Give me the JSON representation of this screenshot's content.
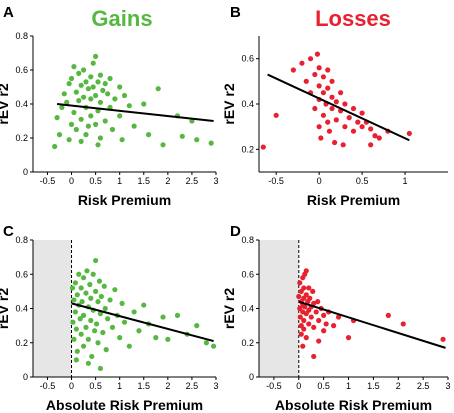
{
  "colors": {
    "gains": "#56b840",
    "losses": "#e82030",
    "shade": "#e6e6e6",
    "fit": "#000000"
  },
  "chart_data": [
    {
      "panel": "A",
      "type": "scatter",
      "title": "Gains",
      "title_color": "#56b840",
      "xlabel": "Risk Premium",
      "ylabel": "rEV r2",
      "xlim": [
        -0.8,
        3.0
      ],
      "ylim": [
        0,
        0.8
      ],
      "xticks": [
        "-0.5",
        "0",
        "0.5",
        "1",
        "1.5",
        "2",
        "2.5",
        "3"
      ],
      "xtick_values": [
        -0.5,
        0,
        0.5,
        1,
        1.5,
        2,
        2.5,
        3
      ],
      "yticks": [
        "0",
        "0.2",
        "0.4",
        "0.6",
        "0.8"
      ],
      "ytick_values": [
        0,
        0.2,
        0.4,
        0.6,
        0.8
      ],
      "shaded_region": null,
      "point_color": "#56b840",
      "points": [
        [
          -0.3,
          0.32
        ],
        [
          -0.25,
          0.22
        ],
        [
          -0.2,
          0.38
        ],
        [
          -0.15,
          0.46
        ],
        [
          -0.1,
          0.41
        ],
        [
          -0.05,
          0.52
        ],
        [
          0,
          0.55
        ],
        [
          0,
          0.28
        ],
        [
          0.05,
          0.62
        ],
        [
          0.05,
          0.35
        ],
        [
          0.1,
          0.47
        ],
        [
          0.1,
          0.25
        ],
        [
          0.15,
          0.58
        ],
        [
          0.15,
          0.42
        ],
        [
          0.2,
          0.51
        ],
        [
          0.2,
          0.31
        ],
        [
          0.2,
          0.18
        ],
        [
          0.25,
          0.6
        ],
        [
          0.25,
          0.44
        ],
        [
          0.3,
          0.53
        ],
        [
          0.3,
          0.38
        ],
        [
          0.3,
          0.22
        ],
        [
          0.35,
          0.49
        ],
        [
          0.35,
          0.27
        ],
        [
          0.4,
          0.56
        ],
        [
          0.4,
          0.43
        ],
        [
          0.4,
          0.33
        ],
        [
          0.45,
          0.64
        ],
        [
          0.45,
          0.5
        ],
        [
          0.5,
          0.68
        ],
        [
          0.5,
          0.45
        ],
        [
          0.5,
          0.28
        ],
        [
          0.55,
          0.53
        ],
        [
          0.55,
          0.36
        ],
        [
          0.6,
          0.57
        ],
        [
          0.6,
          0.41
        ],
        [
          0.6,
          0.2
        ],
        [
          0.65,
          0.48
        ],
        [
          0.7,
          0.52
        ],
        [
          0.7,
          0.3
        ],
        [
          0.75,
          0.46
        ],
        [
          0.8,
          0.38
        ],
        [
          0.8,
          0.55
        ],
        [
          0.85,
          0.25
        ],
        [
          0.9,
          0.43
        ],
        [
          1.0,
          0.5
        ],
        [
          1.0,
          0.33
        ],
        [
          1.05,
          0.19
        ],
        [
          1.1,
          0.45
        ],
        [
          1.2,
          0.39
        ],
        [
          1.3,
          0.27
        ],
        [
          1.5,
          0.4
        ],
        [
          1.6,
          0.22
        ],
        [
          1.8,
          0.49
        ],
        [
          1.9,
          0.16
        ],
        [
          2.2,
          0.33
        ],
        [
          2.3,
          0.21
        ],
        [
          2.5,
          0.3
        ],
        [
          2.6,
          0.19
        ],
        [
          2.9,
          0.17
        ],
        [
          -0.35,
          0.15
        ],
        [
          -0.05,
          0.19
        ],
        [
          0.55,
          0.16
        ]
      ],
      "fit_line": {
        "x": [
          -0.3,
          2.95
        ],
        "y": [
          0.4,
          0.3
        ]
      }
    },
    {
      "panel": "B",
      "type": "scatter",
      "title": "Losses",
      "title_color": "#e82030",
      "xlabel": "Risk Premium",
      "ylabel": "rEV r2",
      "xlim": [
        -0.7,
        1.5
      ],
      "ylim": [
        0.1,
        0.7
      ],
      "xticks": [
        "-0.5",
        "0",
        "0.5",
        "1"
      ],
      "xtick_values": [
        -0.5,
        0,
        0.5,
        1
      ],
      "yticks": [
        "0.2",
        "0.4",
        "0.6"
      ],
      "ytick_values": [
        0.2,
        0.4,
        0.6
      ],
      "shaded_region": null,
      "point_color": "#e82030",
      "points": [
        [
          -0.65,
          0.21
        ],
        [
          -0.3,
          0.55
        ],
        [
          -0.2,
          0.58
        ],
        [
          -0.15,
          0.5
        ],
        [
          -0.1,
          0.45
        ],
        [
          -0.1,
          0.6
        ],
        [
          -0.05,
          0.53
        ],
        [
          -0.05,
          0.38
        ],
        [
          0,
          0.56
        ],
        [
          0,
          0.48
        ],
        [
          0,
          0.42
        ],
        [
          0,
          0.3
        ],
        [
          0.02,
          0.25
        ],
        [
          0.05,
          0.52
        ],
        [
          0.05,
          0.45
        ],
        [
          0.05,
          0.35
        ],
        [
          0.08,
          0.4
        ],
        [
          0.1,
          0.55
        ],
        [
          0.1,
          0.47
        ],
        [
          0.1,
          0.32
        ],
        [
          0.12,
          0.28
        ],
        [
          0.15,
          0.43
        ],
        [
          0.15,
          0.5
        ],
        [
          0.15,
          0.38
        ],
        [
          0.2,
          0.41
        ],
        [
          0.2,
          0.33
        ],
        [
          0.25,
          0.45
        ],
        [
          0.25,
          0.37
        ],
        [
          0.3,
          0.3
        ],
        [
          0.3,
          0.4
        ],
        [
          0.35,
          0.34
        ],
        [
          0.4,
          0.38
        ],
        [
          0.4,
          0.28
        ],
        [
          0.45,
          0.32
        ],
        [
          0.5,
          0.36
        ],
        [
          0.5,
          0.3
        ],
        [
          0.55,
          0.32
        ],
        [
          0.6,
          0.29
        ],
        [
          0.65,
          0.26
        ],
        [
          0.7,
          0.25
        ],
        [
          0.8,
          0.28
        ],
        [
          1.05,
          0.27
        ],
        [
          -0.5,
          0.35
        ],
        [
          0.18,
          0.23
        ],
        [
          0.28,
          0.22
        ],
        [
          0.6,
          0.22
        ],
        [
          -0.02,
          0.62
        ]
      ],
      "fit_line": {
        "x": [
          -0.6,
          1.05
        ],
        "y": [
          0.53,
          0.24
        ]
      }
    },
    {
      "panel": "C",
      "type": "scatter",
      "title": "",
      "xlabel": "Absolute Risk Premium",
      "ylabel": "rEV r2",
      "xlim": [
        -0.8,
        3.0
      ],
      "ylim": [
        0,
        0.8
      ],
      "xticks": [
        "-0.5",
        "0",
        "0.5",
        "1",
        "1.5",
        "2",
        "2.5",
        "3"
      ],
      "xtick_values": [
        -0.5,
        0,
        0.5,
        1,
        1.5,
        2,
        2.5,
        3
      ],
      "yticks": [
        "0",
        "0.2",
        "0.4",
        "0.6",
        "0.8"
      ],
      "ytick_values": [
        0,
        0.2,
        0.4,
        0.6,
        0.8
      ],
      "shaded_region": [
        -0.8,
        0
      ],
      "point_color": "#56b840",
      "points": [
        [
          0.02,
          0.52
        ],
        [
          0.03,
          0.32
        ],
        [
          0.05,
          0.45
        ],
        [
          0.05,
          0.22
        ],
        [
          0.08,
          0.55
        ],
        [
          0.08,
          0.38
        ],
        [
          0.1,
          0.28
        ],
        [
          0.12,
          0.48
        ],
        [
          0.12,
          0.15
        ],
        [
          0.15,
          0.6
        ],
        [
          0.15,
          0.42
        ],
        [
          0.18,
          0.34
        ],
        [
          0.2,
          0.52
        ],
        [
          0.2,
          0.25
        ],
        [
          0.22,
          0.44
        ],
        [
          0.25,
          0.58
        ],
        [
          0.25,
          0.36
        ],
        [
          0.25,
          0.18
        ],
        [
          0.3,
          0.49
        ],
        [
          0.3,
          0.29
        ],
        [
          0.32,
          0.62
        ],
        [
          0.35,
          0.41
        ],
        [
          0.35,
          0.22
        ],
        [
          0.38,
          0.54
        ],
        [
          0.4,
          0.46
        ],
        [
          0.4,
          0.33
        ],
        [
          0.42,
          0.12
        ],
        [
          0.45,
          0.6
        ],
        [
          0.45,
          0.39
        ],
        [
          0.48,
          0.27
        ],
        [
          0.5,
          0.68
        ],
        [
          0.5,
          0.5
        ],
        [
          0.52,
          0.31
        ],
        [
          0.55,
          0.44
        ],
        [
          0.55,
          0.2
        ],
        [
          0.58,
          0.56
        ],
        [
          0.6,
          0.37
        ],
        [
          0.62,
          0.47
        ],
        [
          0.65,
          0.26
        ],
        [
          0.68,
          0.53
        ],
        [
          0.7,
          0.4
        ],
        [
          0.72,
          0.16
        ],
        [
          0.75,
          0.34
        ],
        [
          0.8,
          0.45
        ],
        [
          0.85,
          0.29
        ],
        [
          0.9,
          0.51
        ],
        [
          0.95,
          0.36
        ],
        [
          1.0,
          0.23
        ],
        [
          1.05,
          0.43
        ],
        [
          1.1,
          0.32
        ],
        [
          1.2,
          0.18
        ],
        [
          1.3,
          0.38
        ],
        [
          1.4,
          0.27
        ],
        [
          1.5,
          0.42
        ],
        [
          1.6,
          0.31
        ],
        [
          1.75,
          0.23
        ],
        [
          1.9,
          0.35
        ],
        [
          2.0,
          0.22
        ],
        [
          2.2,
          0.36
        ],
        [
          2.4,
          0.25
        ],
        [
          2.6,
          0.3
        ],
        [
          2.8,
          0.2
        ],
        [
          2.95,
          0.18
        ],
        [
          0.1,
          0.1
        ],
        [
          0.35,
          0.08
        ],
        [
          0.6,
          0.05
        ]
      ],
      "fit_line": {
        "x": [
          0.0,
          2.95
        ],
        "y": [
          0.43,
          0.21
        ]
      }
    },
    {
      "panel": "D",
      "type": "scatter",
      "title": "",
      "xlabel": "Absolute Risk Premium",
      "ylabel": "rEV r2",
      "xlim": [
        -0.8,
        3.0
      ],
      "ylim": [
        0,
        0.8
      ],
      "xticks": [
        "-0.5",
        "0",
        "0.5",
        "1",
        "1.5",
        "2",
        "2.5",
        "3"
      ],
      "xtick_values": [
        -0.5,
        0,
        0.5,
        1,
        1.5,
        2,
        2.5,
        3
      ],
      "yticks": [
        "0",
        "0.2",
        "0.4",
        "0.6",
        "0.8"
      ],
      "ytick_values": [
        0,
        0.2,
        0.4,
        0.6,
        0.8
      ],
      "shaded_region": [
        -0.8,
        0
      ],
      "point_color": "#e82030",
      "points": [
        [
          0.0,
          0.47
        ],
        [
          0.02,
          0.55
        ],
        [
          0.02,
          0.4
        ],
        [
          0.03,
          0.35
        ],
        [
          0.05,
          0.5
        ],
        [
          0.05,
          0.44
        ],
        [
          0.05,
          0.3
        ],
        [
          0.05,
          0.25
        ],
        [
          0.08,
          0.58
        ],
        [
          0.08,
          0.42
        ],
        [
          0.08,
          0.38
        ],
        [
          0.1,
          0.52
        ],
        [
          0.1,
          0.46
        ],
        [
          0.1,
          0.33
        ],
        [
          0.1,
          0.28
        ],
        [
          0.12,
          0.6
        ],
        [
          0.12,
          0.41
        ],
        [
          0.15,
          0.48
        ],
        [
          0.15,
          0.37
        ],
        [
          0.15,
          0.23
        ],
        [
          0.18,
          0.44
        ],
        [
          0.2,
          0.52
        ],
        [
          0.2,
          0.39
        ],
        [
          0.2,
          0.31
        ],
        [
          0.22,
          0.46
        ],
        [
          0.25,
          0.41
        ],
        [
          0.25,
          0.35
        ],
        [
          0.28,
          0.5
        ],
        [
          0.3,
          0.43
        ],
        [
          0.3,
          0.29
        ],
        [
          0.35,
          0.38
        ],
        [
          0.38,
          0.44
        ],
        [
          0.4,
          0.33
        ],
        [
          0.45,
          0.4
        ],
        [
          0.5,
          0.36
        ],
        [
          0.5,
          0.27
        ],
        [
          0.55,
          0.31
        ],
        [
          0.6,
          0.38
        ],
        [
          0.7,
          0.3
        ],
        [
          0.8,
          0.35
        ],
        [
          1.0,
          0.23
        ],
        [
          1.1,
          0.33
        ],
        [
          1.8,
          0.36
        ],
        [
          2.1,
          0.31
        ],
        [
          2.9,
          0.22
        ],
        [
          0.3,
          0.12
        ],
        [
          0.08,
          0.18
        ],
        [
          0.15,
          0.62
        ],
        [
          0.4,
          0.21
        ]
      ],
      "fit_line": {
        "x": [
          0.0,
          2.95
        ],
        "y": [
          0.44,
          0.17
        ]
      }
    }
  ]
}
